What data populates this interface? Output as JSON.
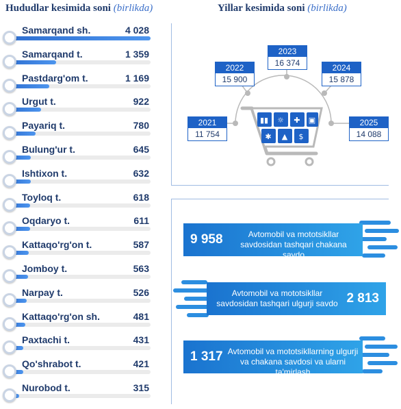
{
  "left_title": {
    "main": "Hududlar kesimida soni",
    "unit": "(birlikda)"
  },
  "right_title": {
    "main": "Yillar kesimida soni",
    "unit": "(birlikda)"
  },
  "chart_data": [
    {
      "type": "bar",
      "title": "Hududlar kesimida soni",
      "unit": "(birlikda)",
      "orientation": "horizontal",
      "categories": [
        "Samarqand sh.",
        "Samarqand t.",
        "Pastdarg'om t.",
        "Urgut t.",
        "Payariq t.",
        "Bulung'ur t.",
        "Ishtixon t.",
        "Toyloq t.",
        "Oqdaryo t.",
        "Kattaqo'rg'on t.",
        "Jomboy t.",
        "Narpay t.",
        "Kattaqo'rg'on sh.",
        "Paxtachi t.",
        "Qo'shrabot t.",
        "Nurobod t."
      ],
      "values": [
        4028,
        1359,
        1169,
        922,
        780,
        645,
        632,
        618,
        611,
        587,
        563,
        526,
        481,
        431,
        421,
        315
      ],
      "display_values": [
        "4 028",
        "1 359",
        "1 169",
        "922",
        "780",
        "645",
        "632",
        "618",
        "611",
        "587",
        "563",
        "526",
        "481",
        "431",
        "421",
        "315"
      ],
      "bar_color": "#2e6fd1"
    },
    {
      "type": "line",
      "title": "Yillar kesimida soni",
      "unit": "(birlikda)",
      "x": [
        "2021",
        "2022",
        "2023",
        "2024",
        "2025"
      ],
      "values": [
        11754,
        15900,
        16374,
        15878,
        14088
      ],
      "display_values": [
        "11 754",
        "15 900",
        "16 374",
        "15 878",
        "14 088"
      ]
    },
    {
      "type": "table",
      "rows": [
        {
          "value": 9958,
          "display": "9 958",
          "label": "Avtomobil va mototsikllar savdosidan tashqari chakana savdo"
        },
        {
          "value": 2813,
          "display": "2 813",
          "label": "Avtomobil va mototsikllar savdosidan tashqari ulgurji savdo"
        },
        {
          "value": 1317,
          "display": "1 317",
          "label": "Avtomobil va mototsikllarning ulgurji va chakana savdosi va ularni ta'mirlash"
        }
      ]
    }
  ],
  "years": [
    {
      "year": "2021",
      "value": "11 754"
    },
    {
      "year": "2022",
      "value": "15 900"
    },
    {
      "year": "2023",
      "value": "16 374"
    },
    {
      "year": "2024",
      "value": "15 878"
    },
    {
      "year": "2025",
      "value": "14 088"
    }
  ],
  "banners": [
    {
      "value": "9 958",
      "line1": "Avtomobil va mototsikllar",
      "line2": "savdosidan tashqari chakana savdo"
    },
    {
      "value": "2 813",
      "line1": "Avtomobil va mototsikllar",
      "line2": "savdosidan tashqari ulgurji savdo"
    },
    {
      "value": "1 317",
      "line1": "Avtomobil va mototsikllarning ulgurji",
      "line2": "va chakana savdosi va ularni ta'mirlash"
    }
  ],
  "colors": {
    "primary": "#1e62c6",
    "text": "#1f3a6b",
    "accent": "#3b6fc9",
    "banner_light": "#2fa3e8"
  },
  "icons": [
    "shopping-cart-icon",
    "bar-chart-icon",
    "lightbulb-icon",
    "puzzle-icon",
    "briefcase-icon",
    "gear-icon",
    "shirt-icon",
    "dollar-icon"
  ]
}
